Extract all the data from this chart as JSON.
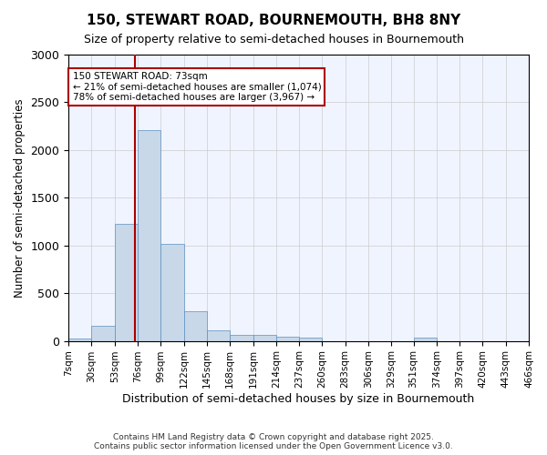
{
  "title_line1": "150, STEWART ROAD, BOURNEMOUTH, BH8 8NY",
  "title_line2": "Size of property relative to semi-detached houses in Bournemouth",
  "xlabel": "Distribution of semi-detached houses by size in Bournemouth",
  "ylabel": "Number of semi-detached properties",
  "footnote": "Contains HM Land Registry data © Crown copyright and database right 2025.\nContains public sector information licensed under the Open Government Licence v3.0.",
  "annotation_title": "150 STEWART ROAD: 73sqm",
  "annotation_line2": "← 21% of semi-detached houses are smaller (1,074)",
  "annotation_line3": "78% of semi-detached houses are larger (3,967) →",
  "property_size": 73,
  "bar_color": "#c8d8e8",
  "bar_edge_color": "#5a8fc0",
  "vline_color": "#aa0000",
  "annotation_box_color": "#aa0000",
  "background_color": "#f0f4ff",
  "grid_color": "#cccccc",
  "ylim": [
    0,
    3000
  ],
  "bin_edges": [
    7,
    30,
    53,
    76,
    99,
    122,
    145,
    168,
    191,
    214,
    237,
    260,
    283,
    306,
    329,
    351,
    374,
    397,
    420,
    443,
    466
  ],
  "bin_labels": [
    "7sqm",
    "30sqm",
    "53sqm",
    "76sqm",
    "99sqm",
    "122sqm",
    "145sqm",
    "168sqm",
    "191sqm",
    "214sqm",
    "237sqm",
    "260sqm",
    "283sqm",
    "306sqm",
    "329sqm",
    "351sqm",
    "374sqm",
    "397sqm",
    "420sqm",
    "443sqm",
    "466sqm"
  ],
  "counts": [
    20,
    160,
    1230,
    2210,
    1020,
    315,
    110,
    65,
    60,
    40,
    35,
    0,
    0,
    0,
    0,
    35,
    0,
    0,
    0,
    0
  ]
}
